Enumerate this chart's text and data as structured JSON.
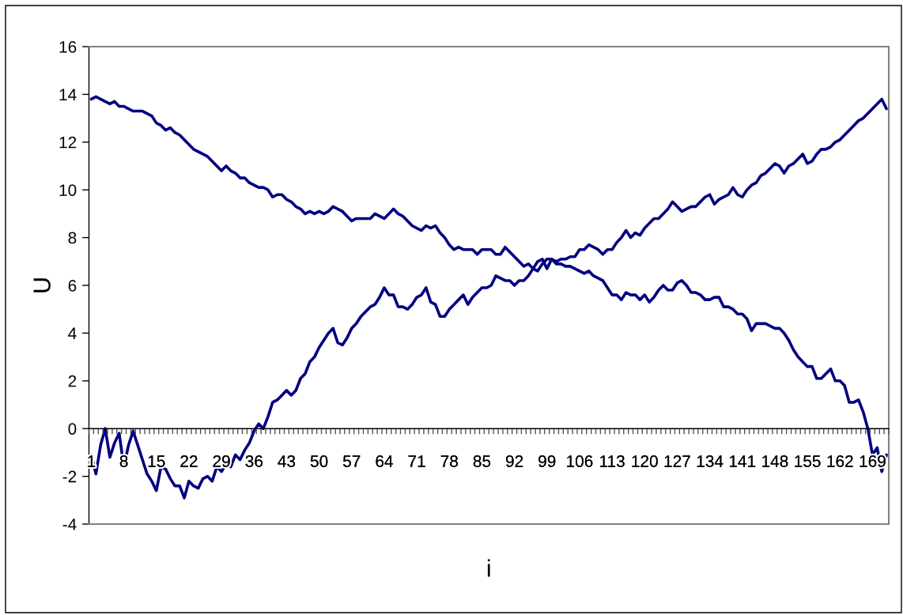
{
  "chart_data": {
    "type": "line",
    "xlabel": "i",
    "ylabel": "U",
    "categories": [
      "1",
      null,
      null,
      null,
      null,
      null,
      null,
      "8",
      null,
      null,
      null,
      null,
      null,
      null,
      "15",
      null,
      null,
      null,
      null,
      null,
      null,
      "22",
      null,
      null,
      null,
      null,
      null,
      null,
      "29",
      null,
      null,
      null,
      null,
      null,
      null,
      "36",
      null,
      null,
      null,
      null,
      null,
      null,
      "43",
      null,
      null,
      null,
      null,
      null,
      null,
      "50",
      null,
      null,
      null,
      null,
      null,
      null,
      "57",
      null,
      null,
      null,
      null,
      null,
      null,
      "64",
      null,
      null,
      null,
      null,
      null,
      null,
      "71",
      null,
      null,
      null,
      null,
      null,
      null,
      "78",
      null,
      null,
      null,
      null,
      null,
      null,
      "85",
      null,
      null,
      null,
      null,
      null,
      null,
      "92",
      null,
      null,
      null,
      null,
      null,
      null,
      "99",
      null,
      null,
      null,
      null,
      null,
      null,
      "106",
      null,
      null,
      null,
      null,
      null,
      null,
      "113",
      null,
      null,
      null,
      null,
      null,
      null,
      "120",
      null,
      null,
      null,
      null,
      null,
      null,
      "127",
      null,
      null,
      null,
      null,
      null,
      null,
      "134",
      null,
      null,
      null,
      null,
      null,
      null,
      "141",
      null,
      null,
      null,
      null,
      null,
      null,
      "148",
      null,
      null,
      null,
      null,
      null,
      null,
      "155",
      null,
      null,
      null,
      null,
      null,
      null,
      "162",
      null,
      null,
      null,
      null,
      null,
      null,
      "169",
      null,
      null,
      null
    ],
    "series": [
      {
        "color": "#000080",
        "values": [
          13.8,
          13.9,
          13.8,
          13.7,
          13.6,
          13.7,
          13.5,
          13.5,
          13.4,
          13.3,
          13.3,
          13.3,
          13.2,
          13.1,
          12.8,
          12.7,
          12.5,
          12.6,
          12.4,
          12.3,
          12.1,
          11.9,
          11.7,
          11.6,
          11.5,
          11.4,
          11.2,
          11.0,
          10.8,
          11.0,
          10.8,
          10.7,
          10.5,
          10.5,
          10.3,
          10.2,
          10.1,
          10.1,
          10.0,
          9.7,
          9.8,
          9.8,
          9.6,
          9.5,
          9.3,
          9.2,
          9.0,
          9.1,
          9.0,
          9.1,
          9.0,
          9.1,
          9.3,
          9.2,
          9.1,
          8.9,
          8.7,
          8.8,
          8.8,
          8.8,
          8.8,
          9.0,
          8.9,
          8.8,
          9.0,
          9.2,
          9.0,
          8.9,
          8.7,
          8.5,
          8.4,
          8.3,
          8.5,
          8.4,
          8.5,
          8.2,
          8.0,
          7.7,
          7.5,
          7.6,
          7.5,
          7.5,
          7.5,
          7.3,
          7.5,
          7.5,
          7.5,
          7.3,
          7.3,
          7.6,
          7.4,
          7.2,
          7.0,
          6.8,
          6.9,
          6.7,
          6.6,
          6.9,
          7.1,
          7.1,
          6.9,
          6.9,
          6.8,
          6.8,
          6.7,
          6.6,
          6.5,
          6.6,
          6.4,
          6.3,
          6.2,
          5.9,
          5.6,
          5.6,
          5.4,
          5.7,
          5.6,
          5.6,
          5.4,
          5.6,
          5.3,
          5.5,
          5.8,
          6.0,
          5.8,
          5.8,
          6.1,
          6.2,
          6.0,
          5.7,
          5.7,
          5.6,
          5.4,
          5.4,
          5.5,
          5.5,
          5.1,
          5.1,
          5.0,
          4.8,
          4.8,
          4.6,
          4.1,
          4.4,
          4.4,
          4.4,
          4.3,
          4.2,
          4.2,
          4.0,
          3.7,
          3.3,
          3.0,
          2.8,
          2.6,
          2.6,
          2.1,
          2.1,
          2.3,
          2.5,
          2.0,
          2.0,
          1.8,
          1.1,
          1.1,
          1.2,
          0.7,
          0.0,
          -1.1,
          -0.8,
          -1.8,
          -1.1
        ]
      },
      {
        "color": "#000080",
        "values": [
          -1.1,
          -1.9,
          -0.7,
          0.0,
          -1.2,
          -0.6,
          -0.2,
          -1.6,
          -0.7,
          -0.1,
          -0.7,
          -1.3,
          -1.9,
          -2.2,
          -2.6,
          -1.6,
          -1.7,
          -2.1,
          -2.4,
          -2.4,
          -2.9,
          -2.2,
          -2.4,
          -2.5,
          -2.1,
          -2.0,
          -2.2,
          -1.6,
          -1.8,
          -1.5,
          -1.6,
          -1.1,
          -1.3,
          -0.9,
          -0.6,
          -0.1,
          0.2,
          0.0,
          0.5,
          1.1,
          1.2,
          1.4,
          1.6,
          1.4,
          1.6,
          2.1,
          2.3,
          2.8,
          3.0,
          3.4,
          3.7,
          4.0,
          4.2,
          3.6,
          3.5,
          3.8,
          4.2,
          4.4,
          4.7,
          4.9,
          5.1,
          5.2,
          5.5,
          5.9,
          5.6,
          5.6,
          5.1,
          5.1,
          5.0,
          5.2,
          5.5,
          5.6,
          5.9,
          5.3,
          5.2,
          4.7,
          4.7,
          5.0,
          5.2,
          5.4,
          5.6,
          5.2,
          5.5,
          5.7,
          5.9,
          5.9,
          6.0,
          6.4,
          6.3,
          6.2,
          6.2,
          6.0,
          6.2,
          6.2,
          6.4,
          6.7,
          7.0,
          7.1,
          6.7,
          7.1,
          7.0,
          7.1,
          7.1,
          7.2,
          7.2,
          7.5,
          7.5,
          7.7,
          7.6,
          7.5,
          7.3,
          7.5,
          7.5,
          7.8,
          8.0,
          8.3,
          8.0,
          8.2,
          8.1,
          8.4,
          8.6,
          8.8,
          8.8,
          9.0,
          9.2,
          9.5,
          9.3,
          9.1,
          9.2,
          9.3,
          9.3,
          9.5,
          9.7,
          9.8,
          9.4,
          9.6,
          9.7,
          9.8,
          10.1,
          9.8,
          9.7,
          10.0,
          10.2,
          10.3,
          10.6,
          10.7,
          10.9,
          11.1,
          11.0,
          10.7,
          11.0,
          11.1,
          11.3,
          11.5,
          11.1,
          11.2,
          11.5,
          11.7,
          11.7,
          11.8,
          12.0,
          12.1,
          12.3,
          12.5,
          12.7,
          12.9,
          13.0,
          13.2,
          13.4,
          13.6,
          13.8,
          13.4
        ]
      }
    ],
    "ylim": [
      -4,
      16
    ],
    "yticks": [
      -4,
      -2,
      0,
      2,
      4,
      6,
      8,
      10,
      12,
      14,
      16
    ]
  }
}
